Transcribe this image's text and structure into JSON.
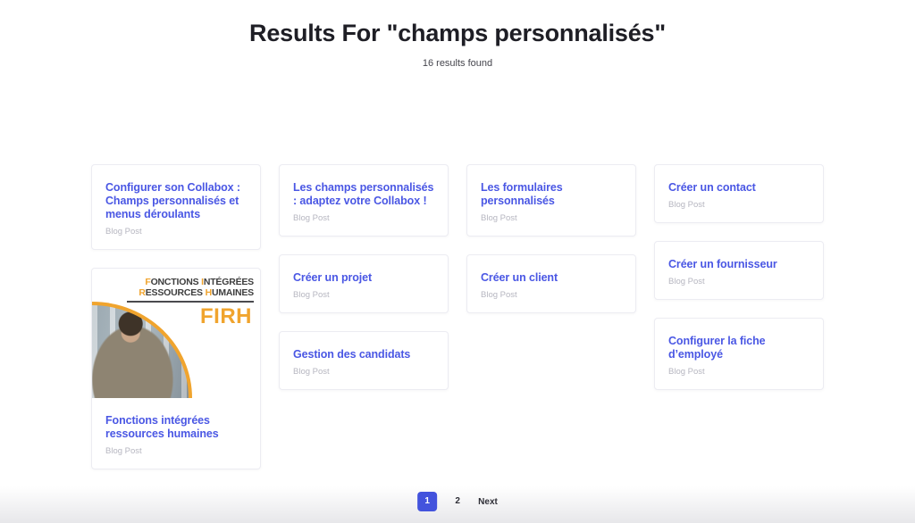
{
  "colors": {
    "accent_blue": "#4a57e4",
    "active_page_bg": "#4353dd",
    "gold_accent": "#f0a42e"
  },
  "header": {
    "title": "Results For \"champs personnalisés\"",
    "results_count": "16 results found"
  },
  "results": {
    "columns": [
      [
        {
          "title": "Configurer son Collabox : Champs personnalisés et menus déroulants",
          "type": "Blog Post"
        },
        {
          "title": "Fonctions intégrées ressources humaines",
          "type": "Blog Post",
          "image": {
            "banner_lines": [
              [
                {
                  "a": "F",
                  "r": "ONCTIONS"
                },
                {
                  "a": "I",
                  "r": "NTÉGRÉES"
                }
              ],
              [
                {
                  "a": "R",
                  "r": "ESSOURCES"
                },
                {
                  "a": "H",
                  "r": "UMAINES"
                }
              ]
            ],
            "acronym": "FIRH",
            "photo_desc": "smiling man in office extending handshake, quarter-circle crop with gold border"
          }
        }
      ],
      [
        {
          "title": "Les champs personnalisés : adaptez votre Collabox !",
          "type": "Blog Post"
        },
        {
          "title": "Créer un projet",
          "type": "Blog Post"
        },
        {
          "title": "Gestion des candidats",
          "type": "Blog Post"
        }
      ],
      [
        {
          "title": "Les formulaires personnalisés",
          "type": "Blog Post"
        },
        {
          "title": "Créer un client",
          "type": "Blog Post"
        }
      ],
      [
        {
          "title": "Créer un contact",
          "type": "Blog Post"
        },
        {
          "title": "Créer un fournisseur",
          "type": "Blog Post"
        },
        {
          "title": "Configurer la fiche d’employé",
          "type": "Blog Post"
        }
      ]
    ]
  },
  "pagination": {
    "pages": [
      {
        "label": "1",
        "active": true
      },
      {
        "label": "2",
        "active": false
      }
    ],
    "next_label": "Next"
  }
}
